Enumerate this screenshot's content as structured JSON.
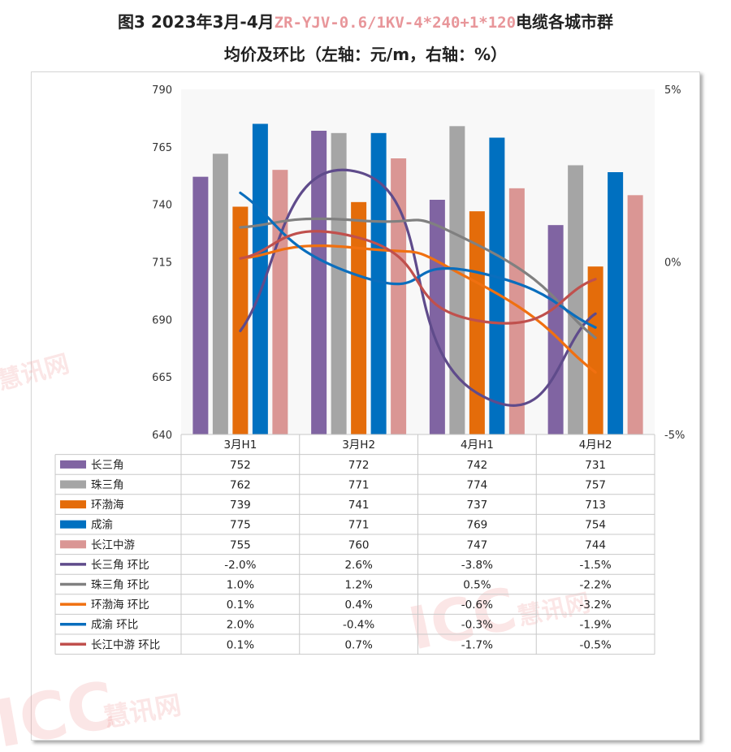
{
  "title": {
    "prefix": "图3 2023年3月-4月",
    "product": "ZR-YJV-0.6/1KV-4*240+1*120",
    "suffix": "电缆各城市群",
    "line2": "均价及环比（左轴：元/m，右轴：%）"
  },
  "watermarks": {
    "brand": "ICC",
    "name": "慧讯网"
  },
  "chart_data": {
    "type": "bar",
    "categories": [
      "3月H1",
      "3月H2",
      "4月H1",
      "4月H2"
    ],
    "left_axis": {
      "ylim": [
        640,
        790
      ],
      "ticks": [
        "640",
        "665",
        "690",
        "715",
        "740",
        "765",
        "790"
      ]
    },
    "right_axis": {
      "ylim": [
        -5,
        5
      ],
      "ticks": [
        "-5%",
        "0%",
        "5%"
      ]
    },
    "bar_series": [
      {
        "name": "长三角",
        "color": "#8064a2",
        "values": [
          752,
          772,
          742,
          731
        ]
      },
      {
        "name": "珠三角",
        "color": "#a5a5a5",
        "values": [
          762,
          771,
          774,
          757
        ]
      },
      {
        "name": "环渤海",
        "color": "#e46c0a",
        "values": [
          739,
          741,
          737,
          713
        ]
      },
      {
        "name": "成渝",
        "color": "#0070c0",
        "values": [
          775,
          771,
          769,
          754
        ]
      },
      {
        "name": "长江中游",
        "color": "#da9694",
        "values": [
          755,
          760,
          747,
          744
        ]
      }
    ],
    "line_series": [
      {
        "name": "长三角 环比",
        "color": "#5f4b8b",
        "values": [
          -2.0,
          2.6,
          -3.8,
          -1.5
        ],
        "labels": [
          "-2.0%",
          "2.6%",
          "-3.8%",
          "-1.5%"
        ]
      },
      {
        "name": "珠三角 环比",
        "color": "#808080",
        "values": [
          1.0,
          1.2,
          0.5,
          -2.2
        ],
        "labels": [
          "1.0%",
          "1.2%",
          "0.5%",
          "-2.2%"
        ]
      },
      {
        "name": "环渤海 环比",
        "color": "#f07010",
        "values": [
          0.1,
          0.4,
          -0.6,
          -3.2
        ],
        "labels": [
          "0.1%",
          "0.4%",
          "-0.6%",
          "-3.2%"
        ]
      },
      {
        "name": "成渝 环比",
        "color": "#0a6ebd",
        "values": [
          2.0,
          -0.4,
          -0.3,
          -1.9
        ],
        "labels": [
          "2.0%",
          "-0.4%",
          "-0.3%",
          "-1.9%"
        ]
      },
      {
        "name": "长江中游 环比",
        "color": "#c0504d",
        "values": [
          0.1,
          0.7,
          -1.7,
          -0.5
        ],
        "labels": [
          "0.1%",
          "0.7%",
          "-1.7%",
          "-0.5%"
        ]
      }
    ],
    "grid": false,
    "legend": "data-table-below"
  }
}
